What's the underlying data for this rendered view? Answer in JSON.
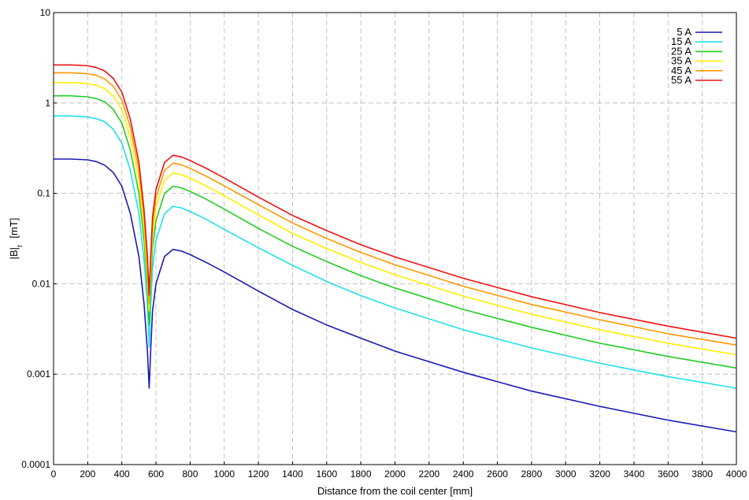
{
  "chart_data": {
    "type": "line",
    "title": "",
    "xlabel": "Distance from the coil center   [mm]",
    "ylabel_main": "|B|",
    "ylabel_sub": "r",
    "ylabel_unit": "[mT]",
    "xlim": [
      0,
      4000
    ],
    "ylim": [
      0.0001,
      10
    ],
    "yscale": "log",
    "grid": true,
    "legend_position": "top-right",
    "x_ticks": [
      "0",
      "200",
      "400",
      "600",
      "800",
      "1000",
      "1200",
      "1400",
      "1600",
      "1800",
      "2000",
      "2200",
      "2400",
      "2600",
      "2800",
      "3000",
      "3200",
      "3400",
      "3600",
      "3800",
      "4000"
    ],
    "y_ticks": [
      "0.0001",
      "0.001",
      "0.01",
      "0.1",
      "1",
      "10"
    ],
    "x": [
      0,
      100,
      200,
      250,
      300,
      350,
      400,
      450,
      500,
      530,
      550,
      560,
      570,
      580,
      600,
      650,
      700,
      750,
      800,
      900,
      1000,
      1200,
      1400,
      1600,
      1800,
      2000,
      2400,
      2800,
      3200,
      3600,
      4000
    ],
    "series": [
      {
        "name": "5 A",
        "color": "#1a1ab5",
        "values": [
          0.24,
          0.24,
          0.235,
          0.225,
          0.205,
          0.17,
          0.12,
          0.06,
          0.02,
          0.006,
          0.0018,
          0.0007,
          0.002,
          0.005,
          0.01,
          0.02,
          0.024,
          0.023,
          0.021,
          0.017,
          0.0135,
          0.0083,
          0.0052,
          0.0035,
          0.0025,
          0.0018,
          0.00105,
          0.00065,
          0.00044,
          0.00031,
          0.00023
        ]
      },
      {
        "name": "15 A",
        "color": "#22e0e8",
        "values": [
          0.72,
          0.72,
          0.7,
          0.67,
          0.62,
          0.51,
          0.36,
          0.18,
          0.06,
          0.018,
          0.006,
          0.002,
          0.006,
          0.015,
          0.03,
          0.06,
          0.072,
          0.069,
          0.063,
          0.051,
          0.04,
          0.025,
          0.016,
          0.0106,
          0.0074,
          0.0054,
          0.0031,
          0.00195,
          0.00132,
          0.00094,
          0.0007
        ]
      },
      {
        "name": "25 A",
        "color": "#22cc22",
        "values": [
          1.2,
          1.2,
          1.17,
          1.12,
          1.03,
          0.85,
          0.6,
          0.3,
          0.1,
          0.03,
          0.009,
          0.0035,
          0.01,
          0.025,
          0.05,
          0.1,
          0.12,
          0.115,
          0.105,
          0.085,
          0.067,
          0.041,
          0.026,
          0.0176,
          0.0123,
          0.009,
          0.0052,
          0.0033,
          0.0022,
          0.00157,
          0.00117
        ]
      },
      {
        "name": "35 A",
        "color": "#ffee00",
        "values": [
          1.68,
          1.68,
          1.64,
          1.57,
          1.44,
          1.19,
          0.84,
          0.42,
          0.14,
          0.042,
          0.012,
          0.005,
          0.014,
          0.035,
          0.07,
          0.14,
          0.168,
          0.161,
          0.147,
          0.119,
          0.094,
          0.058,
          0.036,
          0.0246,
          0.0172,
          0.0126,
          0.0073,
          0.0046,
          0.0031,
          0.0022,
          0.00164
        ]
      },
      {
        "name": "45 A",
        "color": "#ff9900",
        "values": [
          2.16,
          2.16,
          2.11,
          2.02,
          1.85,
          1.53,
          1.08,
          0.54,
          0.18,
          0.054,
          0.016,
          0.006,
          0.018,
          0.045,
          0.09,
          0.18,
          0.216,
          0.207,
          0.189,
          0.153,
          0.121,
          0.075,
          0.047,
          0.0317,
          0.0222,
          0.0162,
          0.0094,
          0.0059,
          0.004,
          0.0028,
          0.0021
        ]
      },
      {
        "name": "55 A",
        "color": "#ee1111",
        "values": [
          2.64,
          2.64,
          2.58,
          2.47,
          2.26,
          1.87,
          1.32,
          0.66,
          0.22,
          0.066,
          0.02,
          0.0075,
          0.022,
          0.055,
          0.11,
          0.22,
          0.264,
          0.253,
          0.231,
          0.187,
          0.148,
          0.091,
          0.057,
          0.0387,
          0.027,
          0.0198,
          0.0115,
          0.0072,
          0.0048,
          0.0034,
          0.0025
        ]
      }
    ]
  }
}
